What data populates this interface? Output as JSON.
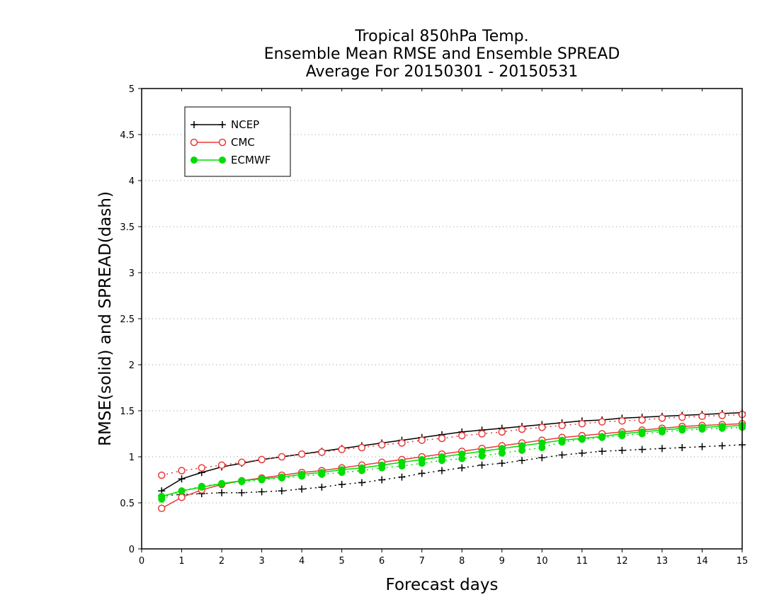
{
  "chart_data": {
    "type": "line",
    "title_lines": [
      "Tropical 850hPa Temp.",
      "Ensemble Mean RMSE and Ensemble SPREAD",
      "Average For 20150301 - 20150531"
    ],
    "xlabel": "Forecast days",
    "ylabel": "RMSE(solid) and SPREAD(dash)",
    "xlim": [
      0,
      15
    ],
    "ylim": [
      0,
      5
    ],
    "x_ticks": [
      "0",
      "1",
      "2",
      "3",
      "4",
      "5",
      "6",
      "7",
      "8",
      "9",
      "10",
      "11",
      "12",
      "13",
      "14",
      "15"
    ],
    "y_ticks": [
      "0",
      "0.5",
      "1",
      "1.5",
      "2",
      "2.5",
      "3",
      "3.5",
      "4",
      "4.5",
      "5"
    ],
    "grid": "horizontal dotted",
    "legend_position": "top-left",
    "x": [
      0.5,
      1,
      1.5,
      2,
      2.5,
      3,
      3.5,
      4,
      4.5,
      5,
      5.5,
      6,
      6.5,
      7,
      7.5,
      8,
      8.5,
      9,
      9.5,
      10,
      10.5,
      11,
      11.5,
      12,
      12.5,
      13,
      13.5,
      14,
      14.5,
      15
    ],
    "series": [
      {
        "name": "NCEP",
        "color": "#000000",
        "marker": "plus",
        "rmse": [
          0.63,
          0.76,
          0.83,
          0.89,
          0.93,
          0.97,
          1.0,
          1.03,
          1.06,
          1.09,
          1.12,
          1.15,
          1.18,
          1.21,
          1.24,
          1.27,
          1.29,
          1.31,
          1.33,
          1.35,
          1.37,
          1.39,
          1.4,
          1.42,
          1.43,
          1.44,
          1.45,
          1.46,
          1.47,
          1.48
        ],
        "spread": [
          0.58,
          0.59,
          0.6,
          0.61,
          0.61,
          0.62,
          0.63,
          0.65,
          0.67,
          0.7,
          0.72,
          0.75,
          0.78,
          0.82,
          0.85,
          0.88,
          0.91,
          0.93,
          0.96,
          0.99,
          1.02,
          1.04,
          1.06,
          1.07,
          1.08,
          1.09,
          1.1,
          1.11,
          1.12,
          1.13
        ]
      },
      {
        "name": "CMC",
        "color": "#e83a3a",
        "marker": "open-circle",
        "rmse": [
          0.44,
          0.56,
          0.64,
          0.7,
          0.74,
          0.77,
          0.8,
          0.83,
          0.85,
          0.88,
          0.91,
          0.94,
          0.97,
          1.0,
          1.03,
          1.06,
          1.09,
          1.12,
          1.15,
          1.18,
          1.21,
          1.23,
          1.25,
          1.27,
          1.29,
          1.31,
          1.33,
          1.34,
          1.35,
          1.36
        ],
        "spread": [
          0.8,
          0.85,
          0.88,
          0.91,
          0.94,
          0.97,
          1.0,
          1.03,
          1.05,
          1.08,
          1.1,
          1.13,
          1.15,
          1.18,
          1.2,
          1.23,
          1.25,
          1.27,
          1.3,
          1.32,
          1.34,
          1.36,
          1.38,
          1.39,
          1.4,
          1.42,
          1.43,
          1.44,
          1.45,
          1.46
        ]
      },
      {
        "name": "ECMWF",
        "color": "#00dd00",
        "marker": "filled-circle",
        "rmse": [
          0.57,
          0.63,
          0.67,
          0.71,
          0.74,
          0.76,
          0.78,
          0.81,
          0.83,
          0.86,
          0.88,
          0.91,
          0.94,
          0.97,
          1.0,
          1.03,
          1.06,
          1.09,
          1.12,
          1.15,
          1.18,
          1.2,
          1.22,
          1.25,
          1.27,
          1.29,
          1.31,
          1.32,
          1.33,
          1.34
        ],
        "spread": [
          0.54,
          0.63,
          0.68,
          0.71,
          0.73,
          0.75,
          0.77,
          0.79,
          0.81,
          0.83,
          0.85,
          0.88,
          0.9,
          0.93,
          0.96,
          0.98,
          1.01,
          1.04,
          1.07,
          1.1,
          1.16,
          1.19,
          1.21,
          1.23,
          1.25,
          1.27,
          1.29,
          1.3,
          1.31,
          1.32
        ]
      }
    ]
  }
}
